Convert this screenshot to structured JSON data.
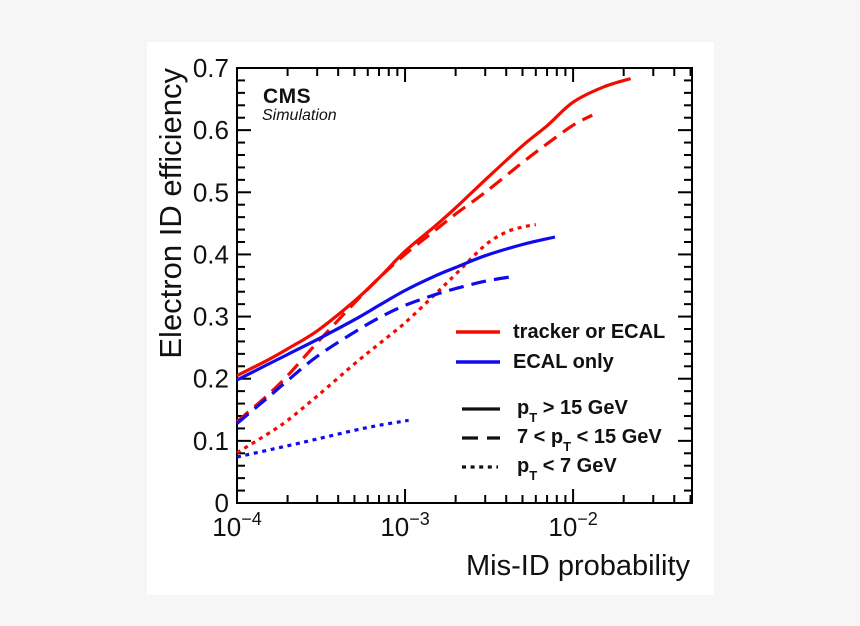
{
  "page": {
    "background": "#f6f6f6",
    "canvas_background": "#ffffff"
  },
  "header": {
    "experiment": "CMS",
    "sublabel": "Simulation"
  },
  "colors": {
    "red": "#f20c00",
    "blue": "#0e0cee",
    "black": "#111111"
  },
  "axes": {
    "x": {
      "title": "Mis-ID probability",
      "scale": "log",
      "min": 0.0001,
      "max": 0.051,
      "major_tick_exponents": [
        -4,
        -3,
        -2
      ]
    },
    "y": {
      "title": "Electron ID efficiency",
      "min": 0,
      "max": 0.7,
      "major_step": 0.1,
      "minor_step": 0.02,
      "tick_labels": [
        "0",
        "0.1",
        "0.2",
        "0.3",
        "0.4",
        "0.5",
        "0.6",
        "0.7"
      ]
    }
  },
  "legend_categories": [
    {
      "id": "red",
      "label": "tracker or ECAL",
      "color": "#f20c00"
    },
    {
      "id": "blue",
      "label": "ECAL only",
      "color": "#0e0cee"
    }
  ],
  "legend_styles": [
    {
      "id": "solid",
      "dash": "solid",
      "label_pre": "p",
      "label_sub": "T",
      "label_post": " > 15 GeV"
    },
    {
      "id": "longdash",
      "dash": "long-dash",
      "label_pre": "7 < p",
      "label_sub": "T",
      "label_post": " < 15 GeV"
    },
    {
      "id": "dotted",
      "dash": "dotted",
      "label_pre": "p",
      "label_sub": "T",
      "label_post": " < 7 GeV"
    }
  ],
  "chart_data": {
    "type": "line",
    "xlabel": "Mis-ID probability",
    "ylabel": "Electron ID efficiency",
    "x_scale": "log",
    "xlim": [
      0.0001,
      0.051
    ],
    "ylim": [
      0,
      0.7
    ],
    "grid": false,
    "legend_position": "center-right",
    "annotations": [
      "CMS",
      "Simulation"
    ],
    "series": [
      {
        "id": "red-solid",
        "name": "tracker or ECAL, pT > 15 GeV",
        "color": "#f20c00",
        "line_style": "solid",
        "points": [
          [
            0.0001,
            0.205
          ],
          [
            0.00015,
            0.229
          ],
          [
            0.0002,
            0.248
          ],
          [
            0.0003,
            0.277
          ],
          [
            0.0005,
            0.325
          ],
          [
            0.0007,
            0.362
          ],
          [
            0.001,
            0.405
          ],
          [
            0.0015,
            0.445
          ],
          [
            0.002,
            0.475
          ],
          [
            0.003,
            0.52
          ],
          [
            0.005,
            0.575
          ],
          [
            0.007,
            0.607
          ],
          [
            0.01,
            0.645
          ],
          [
            0.015,
            0.669
          ],
          [
            0.022,
            0.683
          ]
        ]
      },
      {
        "id": "red-longdash",
        "name": "tracker or ECAL, 7 < pT < 15 GeV",
        "color": "#f20c00",
        "line_style": "long-dash",
        "points": [
          [
            0.0001,
            0.131
          ],
          [
            0.00015,
            0.172
          ],
          [
            0.0002,
            0.205
          ],
          [
            0.0003,
            0.258
          ],
          [
            0.0005,
            0.322
          ],
          [
            0.0007,
            0.362
          ],
          [
            0.001,
            0.4
          ],
          [
            0.0015,
            0.438
          ],
          [
            0.002,
            0.465
          ],
          [
            0.003,
            0.5
          ],
          [
            0.005,
            0.548
          ],
          [
            0.007,
            0.578
          ],
          [
            0.01,
            0.608
          ],
          [
            0.013,
            0.624
          ]
        ]
      },
      {
        "id": "red-dotted",
        "name": "tracker or ECAL, pT < 7 GeV",
        "color": "#f20c00",
        "line_style": "dotted",
        "points": [
          [
            0.0001,
            0.081
          ],
          [
            0.00015,
            0.11
          ],
          [
            0.0002,
            0.133
          ],
          [
            0.0003,
            0.172
          ],
          [
            0.0005,
            0.224
          ],
          [
            0.0007,
            0.256
          ],
          [
            0.001,
            0.29
          ],
          [
            0.0015,
            0.335
          ],
          [
            0.002,
            0.368
          ],
          [
            0.003,
            0.415
          ],
          [
            0.004,
            0.436
          ],
          [
            0.005,
            0.444
          ],
          [
            0.006,
            0.448
          ]
        ]
      },
      {
        "id": "blue-solid",
        "name": "ECAL only, pT > 15 GeV",
        "color": "#0e0cee",
        "line_style": "solid",
        "points": [
          [
            0.0001,
            0.198
          ],
          [
            0.00015,
            0.222
          ],
          [
            0.0002,
            0.239
          ],
          [
            0.0003,
            0.263
          ],
          [
            0.0005,
            0.295
          ],
          [
            0.0007,
            0.318
          ],
          [
            0.001,
            0.342
          ],
          [
            0.0015,
            0.365
          ],
          [
            0.002,
            0.379
          ],
          [
            0.003,
            0.398
          ],
          [
            0.005,
            0.416
          ],
          [
            0.0078,
            0.428
          ]
        ]
      },
      {
        "id": "blue-longdash",
        "name": "ECAL only, 7 < pT < 15 GeV",
        "color": "#0e0cee",
        "line_style": "long-dash",
        "points": [
          [
            0.0001,
            0.128
          ],
          [
            0.00015,
            0.168
          ],
          [
            0.0002,
            0.197
          ],
          [
            0.0003,
            0.236
          ],
          [
            0.0005,
            0.275
          ],
          [
            0.0007,
            0.298
          ],
          [
            0.001,
            0.318
          ],
          [
            0.0015,
            0.335
          ],
          [
            0.002,
            0.345
          ],
          [
            0.003,
            0.357
          ],
          [
            0.0043,
            0.364
          ]
        ]
      },
      {
        "id": "blue-dotted",
        "name": "ECAL only, pT < 7 GeV",
        "color": "#0e0cee",
        "line_style": "dotted",
        "points": [
          [
            0.0001,
            0.074
          ],
          [
            0.0002,
            0.092
          ],
          [
            0.0003,
            0.103
          ],
          [
            0.0005,
            0.117
          ],
          [
            0.0007,
            0.125
          ],
          [
            0.001,
            0.132
          ],
          [
            0.00105,
            0.133
          ]
        ]
      }
    ]
  }
}
